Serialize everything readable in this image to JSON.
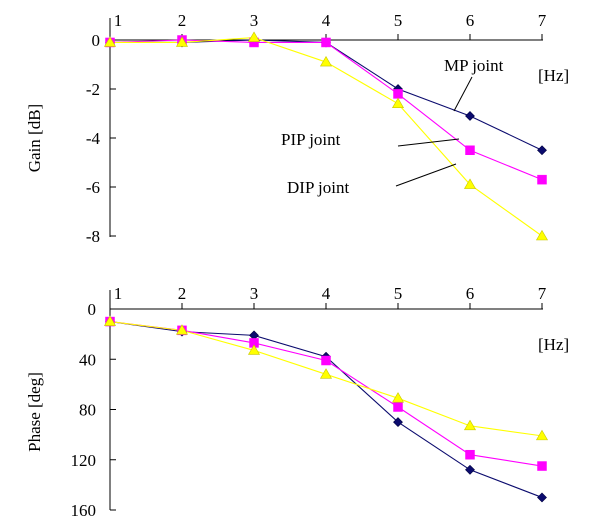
{
  "units_label": "[Hz]",
  "chart_data": [
    {
      "type": "line",
      "ylabel": "Gain [dB]",
      "x_unit": "[Hz]",
      "categories": [
        "1",
        "2",
        "3",
        "4",
        "5",
        "6",
        "7"
      ],
      "y_ticks": [
        0,
        -2,
        -4,
        -6,
        -8
      ],
      "y_tick_labels": [
        "0",
        "-2",
        "-4",
        "-6",
        "-8"
      ],
      "ylim": [
        -8.3,
        0.1
      ],
      "series": [
        {
          "name": "MP joint",
          "color": "#0b0b6e",
          "marker": "diamond",
          "values": [
            -0.1,
            -0.1,
            0.0,
            -0.1,
            -2.0,
            -3.1,
            -4.5
          ]
        },
        {
          "name": "PIP joint",
          "color": "#ff00ff",
          "marker": "square",
          "values": [
            -0.1,
            0.0,
            -0.1,
            -0.1,
            -2.2,
            -4.5,
            -5.7
          ]
        },
        {
          "name": "DIP joint",
          "color": "#ffff00",
          "marker": "triangle",
          "values": [
            -0.1,
            -0.1,
            0.1,
            -0.9,
            -2.6,
            -5.9,
            -8.0
          ]
        }
      ]
    },
    {
      "type": "line",
      "ylabel": "Phase [deg]",
      "x_unit": "[Hz]",
      "categories": [
        "1",
        "2",
        "3",
        "4",
        "5",
        "6",
        "7"
      ],
      "y_ticks": [
        0,
        40,
        80,
        120,
        160
      ],
      "y_tick_labels": [
        "0",
        "40",
        "80",
        "120",
        "160"
      ],
      "ylim": [
        0,
        160
      ],
      "inverted": true,
      "series": [
        {
          "name": "MP joint",
          "color": "#0b0b6e",
          "marker": "diamond",
          "values": [
            10,
            18,
            21,
            38,
            90,
            128,
            150
          ]
        },
        {
          "name": "PIP joint",
          "color": "#ff00ff",
          "marker": "square",
          "values": [
            10,
            17,
            27,
            41,
            78,
            116,
            125
          ]
        },
        {
          "name": "DIP joint",
          "color": "#ffff00",
          "marker": "triangle",
          "values": [
            10,
            17,
            33,
            52,
            71,
            93,
            101
          ]
        }
      ]
    }
  ]
}
